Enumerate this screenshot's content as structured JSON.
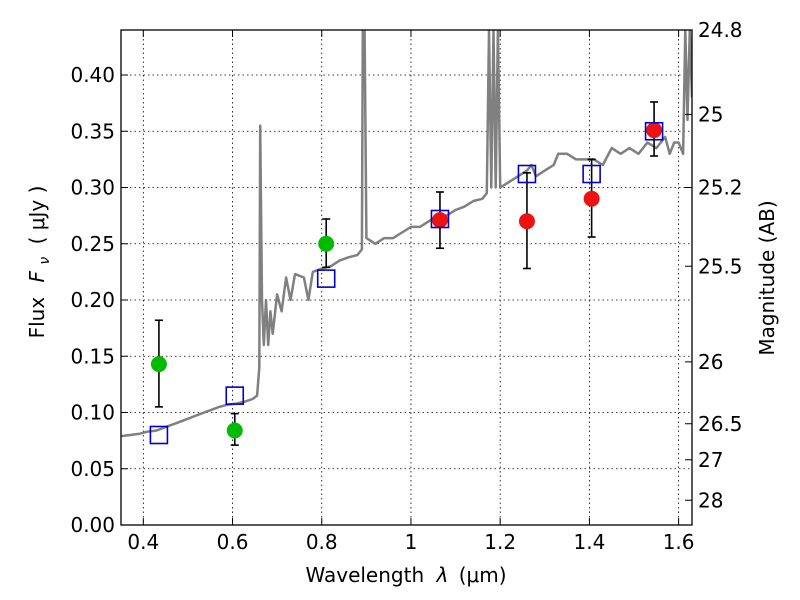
{
  "chart_data": {
    "type": "scatter",
    "xlabel_text": "Wavelength",
    "xlabel_symbol": "λ",
    "xlabel_unit": "(μm)",
    "ylabel_text": "Flux",
    "ylabel_symbol": "F",
    "ylabel_subscript": "ν",
    "ylabel_unit": "( μJy )",
    "y2label": "Magnitude (AB)",
    "xlim": [
      0.35,
      1.63
    ],
    "ylim": [
      0.0,
      0.44
    ],
    "grid": true,
    "x_ticks": [
      {
        "value": 0.4,
        "label": "0.4"
      },
      {
        "value": 0.6,
        "label": "0.6"
      },
      {
        "value": 0.8,
        "label": "0.8"
      },
      {
        "value": 1.0,
        "label": "1"
      },
      {
        "value": 1.2,
        "label": "1.2"
      },
      {
        "value": 1.4,
        "label": "1.4"
      },
      {
        "value": 1.6,
        "label": "1.6"
      }
    ],
    "y_ticks": [
      {
        "value": 0.0,
        "label": "0.00"
      },
      {
        "value": 0.05,
        "label": "0.05"
      },
      {
        "value": 0.1,
        "label": "0.10"
      },
      {
        "value": 0.15,
        "label": "0.15"
      },
      {
        "value": 0.2,
        "label": "0.20"
      },
      {
        "value": 0.25,
        "label": "0.25"
      },
      {
        "value": 0.3,
        "label": "0.30"
      },
      {
        "value": 0.35,
        "label": "0.35"
      },
      {
        "value": 0.4,
        "label": "0.40"
      }
    ],
    "y2_ticks": [
      {
        "flux": 0.44,
        "label": "24.8"
      },
      {
        "flux": 0.365,
        "label": "25"
      },
      {
        "flux": 0.3,
        "label": "25.2"
      },
      {
        "flux": 0.23,
        "label": "25.5"
      },
      {
        "flux": 0.145,
        "label": "26"
      },
      {
        "flux": 0.09,
        "label": "26.5"
      },
      {
        "flux": 0.058,
        "label": "27"
      },
      {
        "flux": 0.022,
        "label": "28"
      }
    ],
    "model_spectrum": {
      "color": "#808080",
      "points": [
        [
          0.35,
          0.079
        ],
        [
          0.37,
          0.08
        ],
        [
          0.39,
          0.081
        ],
        [
          0.41,
          0.083
        ],
        [
          0.43,
          0.084
        ],
        [
          0.45,
          0.087
        ],
        [
          0.47,
          0.09
        ],
        [
          0.49,
          0.093
        ],
        [
          0.51,
          0.096
        ],
        [
          0.53,
          0.099
        ],
        [
          0.55,
          0.102
        ],
        [
          0.57,
          0.105
        ],
        [
          0.59,
          0.107
        ],
        [
          0.61,
          0.108
        ],
        [
          0.63,
          0.11
        ],
        [
          0.645,
          0.112
        ],
        [
          0.655,
          0.115
        ],
        [
          0.66,
          0.14
        ],
        [
          0.662,
          0.355
        ],
        [
          0.666,
          0.2
        ],
        [
          0.67,
          0.16
        ],
        [
          0.675,
          0.2
        ],
        [
          0.68,
          0.16
        ],
        [
          0.685,
          0.19
        ],
        [
          0.69,
          0.17
        ],
        [
          0.7,
          0.205
        ],
        [
          0.71,
          0.19
        ],
        [
          0.72,
          0.22
        ],
        [
          0.73,
          0.2
        ],
        [
          0.74,
          0.223
        ],
        [
          0.76,
          0.22
        ],
        [
          0.77,
          0.2
        ],
        [
          0.78,
          0.225
        ],
        [
          0.8,
          0.228
        ],
        [
          0.82,
          0.23
        ],
        [
          0.84,
          0.235
        ],
        [
          0.86,
          0.238
        ],
        [
          0.88,
          0.24
        ],
        [
          0.89,
          0.245
        ],
        [
          0.892,
          0.44
        ],
        [
          0.896,
          0.44
        ],
        [
          0.9,
          0.255
        ],
        [
          0.92,
          0.25
        ],
        [
          0.94,
          0.255
        ],
        [
          0.96,
          0.255
        ],
        [
          0.98,
          0.26
        ],
        [
          1.0,
          0.265
        ],
        [
          1.02,
          0.265
        ],
        [
          1.04,
          0.27
        ],
        [
          1.06,
          0.275
        ],
        [
          1.08,
          0.275
        ],
        [
          1.1,
          0.28
        ],
        [
          1.12,
          0.283
        ],
        [
          1.14,
          0.288
        ],
        [
          1.16,
          0.29
        ],
        [
          1.17,
          0.295
        ],
        [
          1.175,
          0.44
        ],
        [
          1.18,
          0.3
        ],
        [
          1.185,
          0.44
        ],
        [
          1.19,
          0.3
        ],
        [
          1.195,
          0.44
        ],
        [
          1.2,
          0.3
        ],
        [
          1.22,
          0.305
        ],
        [
          1.24,
          0.31
        ],
        [
          1.26,
          0.315
        ],
        [
          1.27,
          0.32
        ],
        [
          1.28,
          0.31
        ],
        [
          1.3,
          0.315
        ],
        [
          1.32,
          0.32
        ],
        [
          1.33,
          0.33
        ],
        [
          1.35,
          0.33
        ],
        [
          1.37,
          0.325
        ],
        [
          1.39,
          0.325
        ],
        [
          1.41,
          0.325
        ],
        [
          1.43,
          0.32
        ],
        [
          1.45,
          0.335
        ],
        [
          1.47,
          0.33
        ],
        [
          1.49,
          0.335
        ],
        [
          1.51,
          0.33
        ],
        [
          1.53,
          0.34
        ],
        [
          1.55,
          0.335
        ],
        [
          1.57,
          0.345
        ],
        [
          1.58,
          0.33
        ],
        [
          1.59,
          0.34
        ],
        [
          1.6,
          0.34
        ],
        [
          1.61,
          0.33
        ],
        [
          1.615,
          0.44
        ],
        [
          1.62,
          0.36
        ],
        [
          1.625,
          0.44
        ],
        [
          1.63,
          0.38
        ]
      ]
    },
    "series": [
      {
        "marker": "circle",
        "color": "#00bb00",
        "points": [
          {
            "x": 0.435,
            "y": 0.143,
            "err_low": 0.038,
            "err_high": 0.039
          },
          {
            "x": 0.605,
            "y": 0.084,
            "err_low": 0.013,
            "err_high": 0.015
          },
          {
            "x": 0.81,
            "y": 0.25,
            "err_low": 0.021,
            "err_high": 0.022
          }
        ]
      },
      {
        "marker": "circle",
        "color": "#ee1111",
        "points": [
          {
            "x": 1.065,
            "y": 0.271,
            "err_low": 0.025,
            "err_high": 0.025
          },
          {
            "x": 1.26,
            "y": 0.27,
            "err_low": 0.042,
            "err_high": 0.043
          },
          {
            "x": 1.405,
            "y": 0.29,
            "err_low": 0.034,
            "err_high": 0.035
          },
          {
            "x": 1.545,
            "y": 0.351,
            "err_low": 0.023,
            "err_high": 0.025
          }
        ]
      },
      {
        "marker": "square",
        "color": "#0000cc",
        "points": [
          {
            "x": 0.435,
            "y": 0.08
          },
          {
            "x": 0.605,
            "y": 0.115
          },
          {
            "x": 0.81,
            "y": 0.219
          },
          {
            "x": 1.065,
            "y": 0.272
          },
          {
            "x": 1.26,
            "y": 0.312
          },
          {
            "x": 1.405,
            "y": 0.312
          },
          {
            "x": 1.545,
            "y": 0.35
          }
        ]
      }
    ]
  }
}
